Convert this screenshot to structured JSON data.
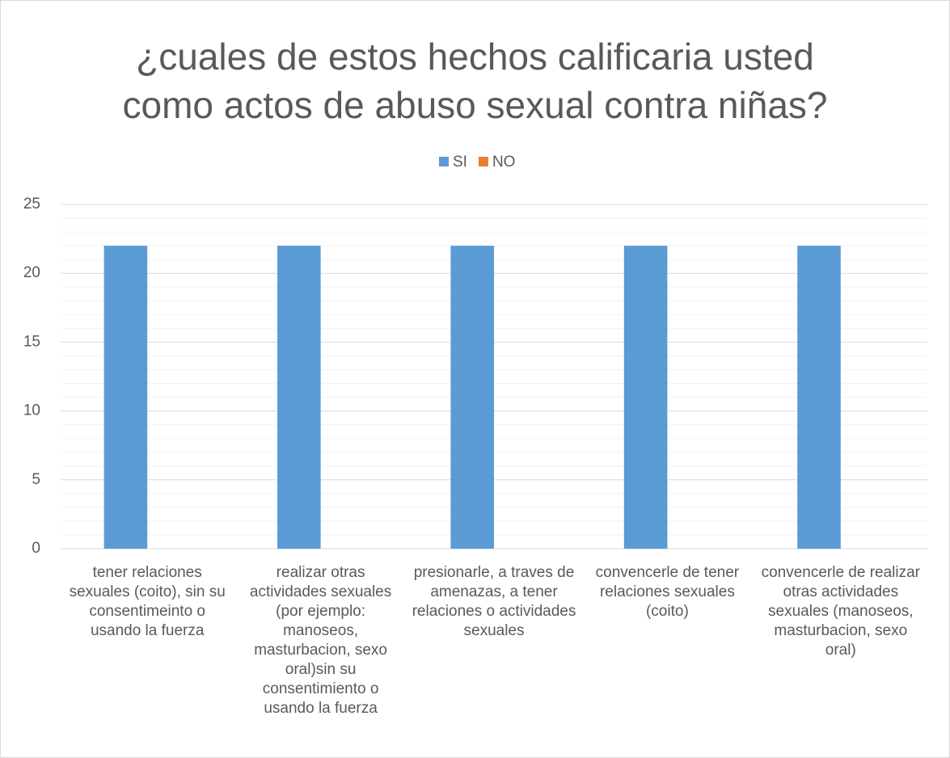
{
  "chart_data": {
    "type": "bar",
    "title": "¿cuales de estos hechos calificaria usted como actos de abuso sexual contra niñas?",
    "categories": [
      "tener relaciones sexuales (coito), sin su consentimeinto o usando la fuerza",
      "realizar otras actividades sexuales (por ejemplo: manoseos, masturbacion, sexo oral)sin su consentimiento o usando la fuerza",
      "presionarle, a traves de amenazas, a tener relaciones o actividades sexuales",
      "convencerle de tener relaciones sexuales (coito)",
      "convencerle de realizar otras actividades sexuales (manoseos, masturbacion, sexo oral)"
    ],
    "series": [
      {
        "name": "SI",
        "color": "#5b9bd5",
        "values": [
          22,
          22,
          22,
          22,
          22
        ]
      },
      {
        "name": "NO",
        "color": "#ed7d31",
        "values": [
          0,
          0,
          0,
          0,
          0
        ]
      }
    ],
    "ylim": [
      0,
      25
    ],
    "yticks": [
      0,
      5,
      10,
      15,
      20,
      25
    ],
    "grid": true,
    "legend": "top"
  }
}
